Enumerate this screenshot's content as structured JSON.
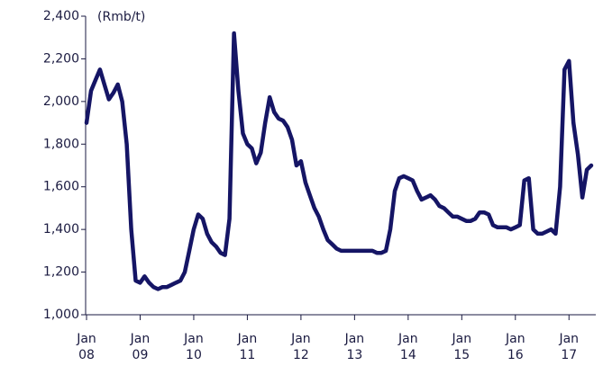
{
  "chart_data": {
    "type": "line",
    "y_label": "(Rmb/t)",
    "x": [
      "2008-01",
      "2008-02",
      "2008-03",
      "2008-04",
      "2008-05",
      "2008-06",
      "2008-07",
      "2008-08",
      "2008-09",
      "2008-10",
      "2008-11",
      "2008-12",
      "2009-01",
      "2009-02",
      "2009-03",
      "2009-04",
      "2009-05",
      "2009-06",
      "2009-07",
      "2009-08",
      "2009-09",
      "2009-10",
      "2009-11",
      "2009-12",
      "2010-01",
      "2010-02",
      "2010-03",
      "2010-04",
      "2010-05",
      "2010-06",
      "2010-07",
      "2010-08",
      "2010-09",
      "2010-10",
      "2010-11",
      "2010-12",
      "2011-01",
      "2011-02",
      "2011-03",
      "2011-04",
      "2011-05",
      "2011-06",
      "2011-07",
      "2011-08",
      "2011-09",
      "2011-10",
      "2011-11",
      "2011-12",
      "2012-01",
      "2012-02",
      "2012-03",
      "2012-04",
      "2012-05",
      "2012-06",
      "2012-07",
      "2012-08",
      "2012-09",
      "2012-10",
      "2012-11",
      "2012-12",
      "2013-01",
      "2013-02",
      "2013-03",
      "2013-04",
      "2013-05",
      "2013-06",
      "2013-07",
      "2013-08",
      "2013-09",
      "2013-10",
      "2013-11",
      "2013-12",
      "2014-01",
      "2014-02",
      "2014-03",
      "2014-04",
      "2014-05",
      "2014-06",
      "2014-07",
      "2014-08",
      "2014-09",
      "2014-10",
      "2014-11",
      "2014-12",
      "2015-01",
      "2015-02",
      "2015-03",
      "2015-04",
      "2015-05",
      "2015-06",
      "2015-07",
      "2015-08",
      "2015-09",
      "2015-10",
      "2015-11",
      "2015-12",
      "2016-01",
      "2016-02",
      "2016-03",
      "2016-04",
      "2016-05",
      "2016-06",
      "2016-07",
      "2016-08",
      "2016-09",
      "2016-10",
      "2016-11",
      "2016-12",
      "2017-01",
      "2017-02",
      "2017-03",
      "2017-04",
      "2017-05",
      "2017-06"
    ],
    "series": [
      {
        "color": "#151565",
        "values": [
          1900,
          2050,
          2100,
          2150,
          2080,
          2010,
          2040,
          2080,
          2000,
          1800,
          1400,
          1160,
          1150,
          1180,
          1150,
          1130,
          1120,
          1130,
          1130,
          1140,
          1150,
          1160,
          1200,
          1300,
          1400,
          1470,
          1450,
          1380,
          1340,
          1320,
          1290,
          1280,
          1450,
          2320,
          2050,
          1850,
          1800,
          1780,
          1710,
          1760,
          1900,
          2020,
          1950,
          1920,
          1910,
          1880,
          1820,
          1700,
          1720,
          1620,
          1560,
          1500,
          1460,
          1400,
          1350,
          1330,
          1310,
          1300,
          1300,
          1300,
          1300,
          1300,
          1300,
          1300,
          1300,
          1290,
          1290,
          1300,
          1400,
          1580,
          1640,
          1650,
          1640,
          1630,
          1580,
          1540,
          1550,
          1560,
          1540,
          1510,
          1500,
          1480,
          1460,
          1460,
          1450,
          1440,
          1440,
          1450,
          1480,
          1480,
          1470,
          1420,
          1410,
          1410,
          1410,
          1400,
          1410,
          1420,
          1630,
          1640,
          1400,
          1380,
          1380,
          1390,
          1400,
          1380,
          1600,
          2150,
          2190,
          1900,
          1750,
          1550,
          1680,
          1700
        ]
      }
    ],
    "xlim": [
      "2008-01",
      "2017-07"
    ],
    "xticks": [
      {
        "value": "2008-01",
        "label": "Jan 08"
      },
      {
        "value": "2009-01",
        "label": "Jan 09"
      },
      {
        "value": "2010-01",
        "label": "Jan 10"
      },
      {
        "value": "2011-01",
        "label": "Jan 11"
      },
      {
        "value": "2012-01",
        "label": "Jan 12"
      },
      {
        "value": "2013-01",
        "label": "Jan 13"
      },
      {
        "value": "2014-01",
        "label": "Jan 14"
      },
      {
        "value": "2015-01",
        "label": "Jan 15"
      },
      {
        "value": "2016-01",
        "label": "Jan 16"
      },
      {
        "value": "2017-01",
        "label": "Jan 17"
      }
    ],
    "ylim": [
      1000,
      2400
    ],
    "yticks": [
      {
        "value": 1000,
        "label": "1,000"
      },
      {
        "value": 1200,
        "label": "1,200"
      },
      {
        "value": 1400,
        "label": "1,400"
      },
      {
        "value": 1600,
        "label": "1,600"
      },
      {
        "value": 1800,
        "label": "1,800"
      },
      {
        "value": 2000,
        "label": "2,000"
      },
      {
        "value": 2200,
        "label": "2,200"
      },
      {
        "value": 2400,
        "label": "2,400"
      }
    ],
    "grid": false
  }
}
